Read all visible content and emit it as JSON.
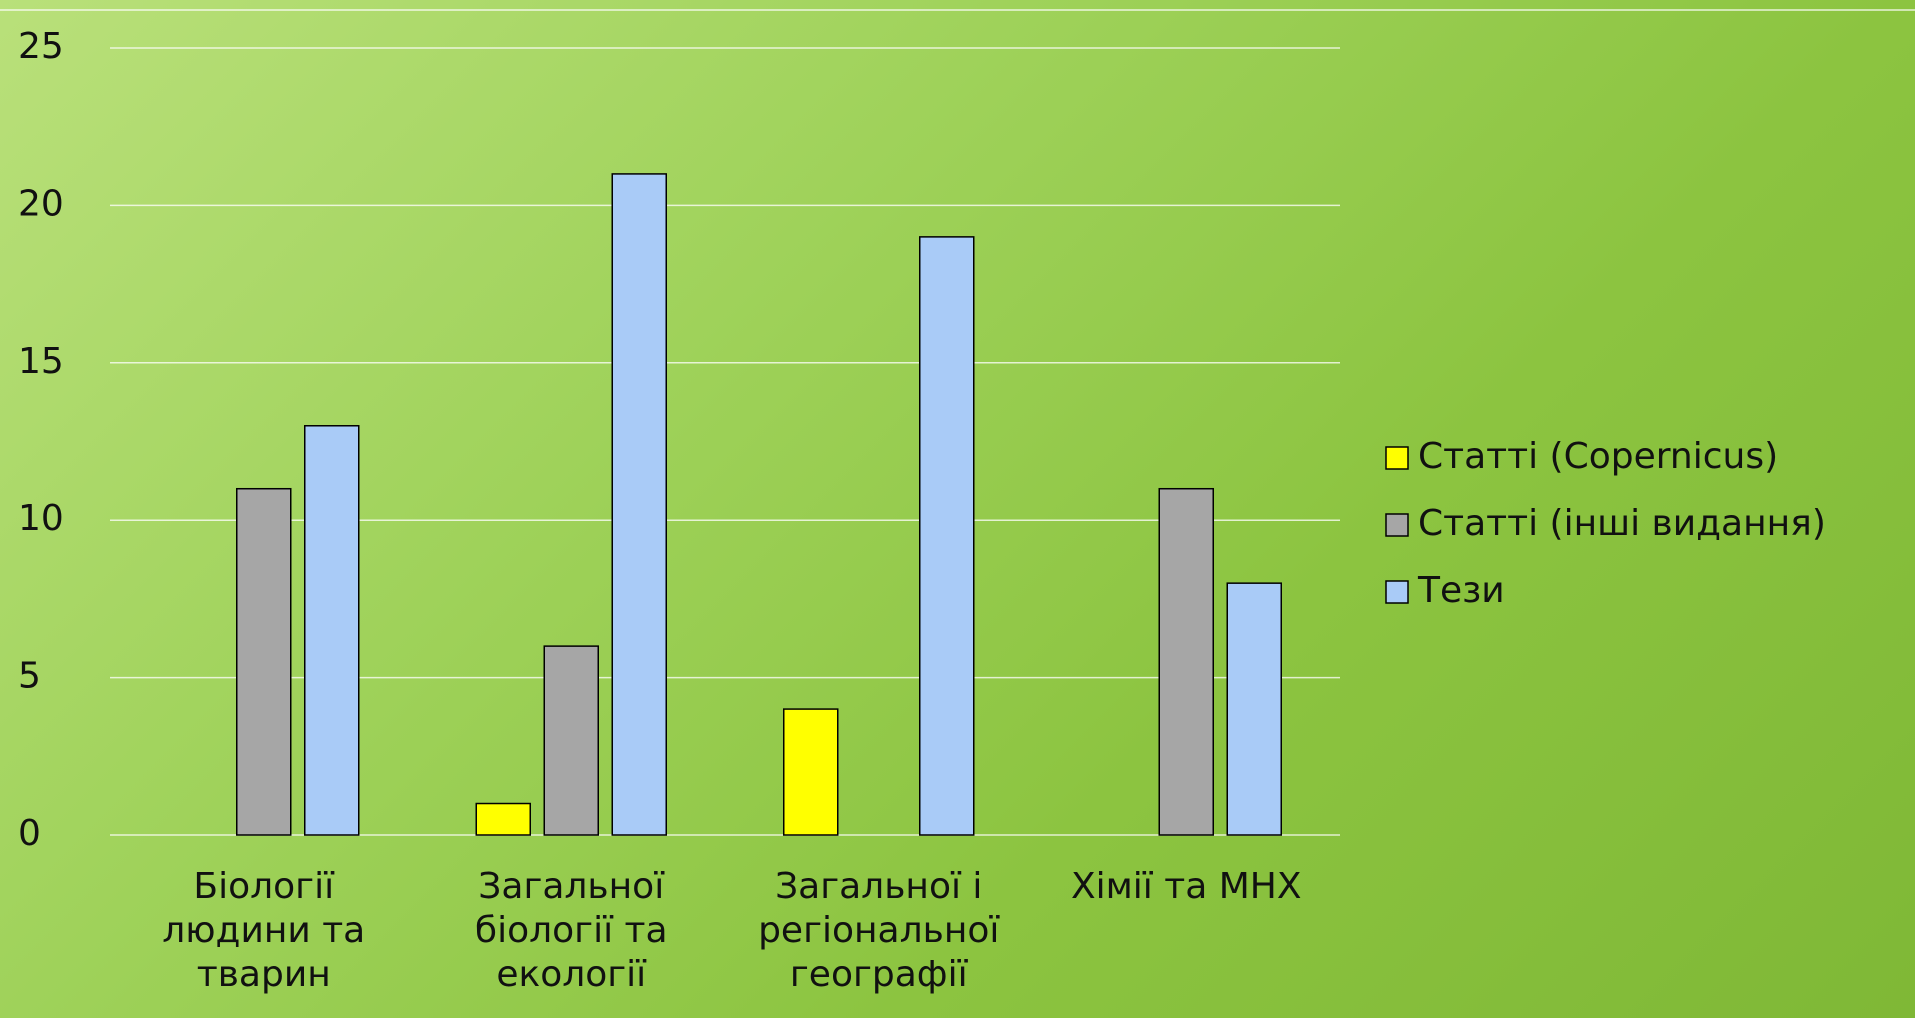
{
  "chart_data": {
    "type": "bar",
    "categories": [
      "Біології людини та тварин",
      "Загальної біології та екології",
      "Загальної і регіональної географії",
      "Хімії та МНХ"
    ],
    "series": [
      {
        "name": "Статті (Copernicus)",
        "color": "#ffff00",
        "values": [
          0,
          1,
          4,
          0
        ]
      },
      {
        "name": "Статті (інші видання)",
        "color": "#a6a6a6",
        "values": [
          11,
          6,
          0,
          11
        ]
      },
      {
        "name": "Тези",
        "color": "#a9cbf7",
        "values": [
          13,
          21,
          19,
          8
        ]
      }
    ],
    "ylim": [
      0,
      25
    ],
    "yticks": [
      0,
      5,
      10,
      15,
      20,
      25
    ],
    "grid": true,
    "legend": "right"
  }
}
